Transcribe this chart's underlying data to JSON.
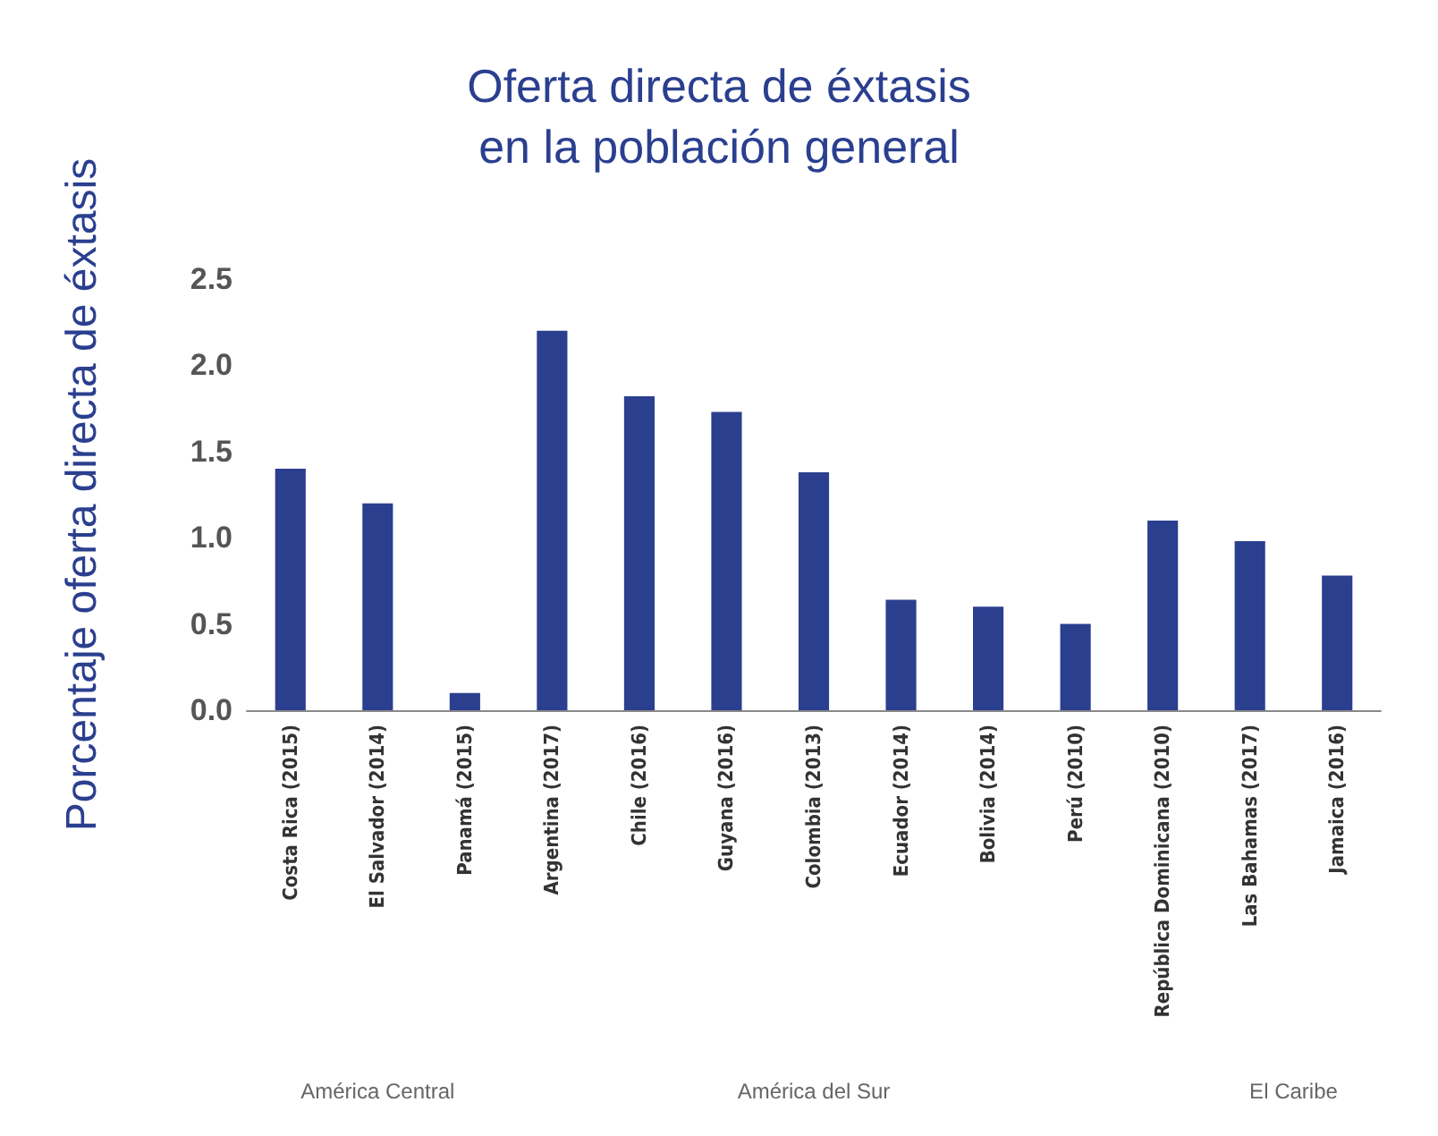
{
  "chart_data": {
    "type": "bar",
    "title": "Oferta directa de éxtasis\nen la población general",
    "ylabel": "Porcentaje oferta directa de éxtasis",
    "categories": [
      "Costa Rica (2015)",
      "El Salvador (2014)",
      "Panamá (2015)",
      "Argentina (2017)",
      "Chile (2016)",
      "Guyana (2016)",
      "Colombia (2013)",
      "Ecuador (2014)",
      "Bolivia (2014)",
      "Perú (2010)",
      "República Dominicana (2010)",
      "Las Bahamas (2017)",
      "Jamaica (2016)"
    ],
    "values": [
      1.4,
      1.2,
      0.1,
      2.2,
      1.82,
      1.73,
      1.38,
      0.64,
      0.6,
      0.5,
      1.1,
      0.98,
      0.78
    ],
    "color": "#2b3f8f",
    "ylim": [
      0,
      2.5
    ],
    "yticks": [
      {
        "value": 0,
        "label": "0.0"
      },
      {
        "value": 0.5,
        "label": "0.5"
      },
      {
        "value": 1,
        "label": "1.0"
      },
      {
        "value": 1.5,
        "label": "1.5"
      },
      {
        "value": 2,
        "label": "2.0"
      },
      {
        "value": 2.5,
        "label": "2.5"
      }
    ],
    "grid": false,
    "annotations": [
      "América Central",
      "América del Sur",
      "El Caribe"
    ]
  }
}
